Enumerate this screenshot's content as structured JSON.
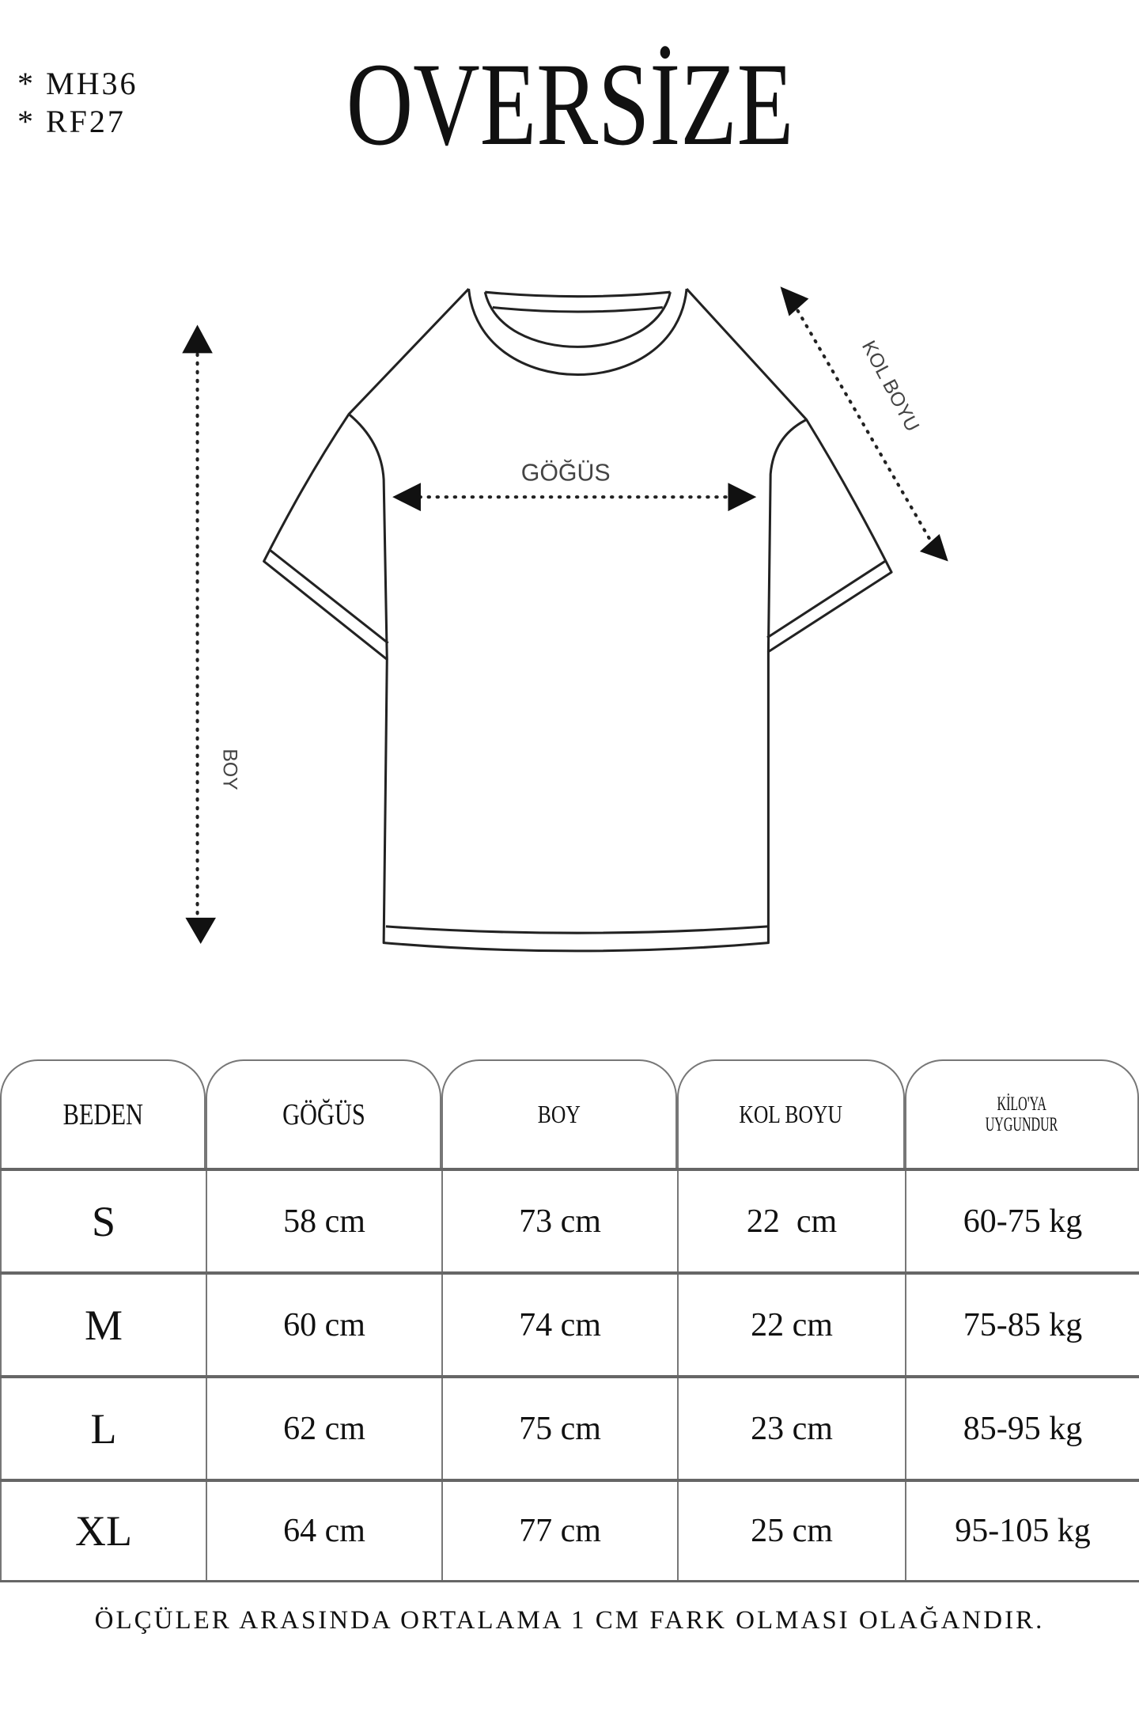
{
  "codes": [
    "* MH36",
    "* RF27"
  ],
  "title": "OVERSİZE",
  "diagram": {
    "chest_label": "GÖĞÜS",
    "length_label": "BOY",
    "sleeve_label": "KOL BOYU"
  },
  "table": {
    "headers": [
      "BEDEN",
      "GÖĞÜS",
      "BOY",
      "KOL BOYU",
      "KİLO'YA UYGUNDUR"
    ],
    "header_kilo_line1": "KİLO'YA",
    "header_kilo_line2": "UYGUNDUR",
    "rows": [
      [
        "S",
        "58 cm",
        "73 cm",
        "22  cm",
        "60-75 kg"
      ],
      [
        "M",
        "60 cm",
        "74 cm",
        "22 cm",
        "75-85 kg"
      ],
      [
        "L",
        "62 cm",
        "75 cm",
        "23 cm",
        "85-95 kg"
      ],
      [
        "XL",
        "64 cm",
        "77 cm",
        "25 cm",
        "95-105 kg"
      ]
    ]
  },
  "footer_note": "ÖLÇÜLER ARASINDA ORTALAMA 1 CM FARK OLMASI OLAĞANDIR."
}
